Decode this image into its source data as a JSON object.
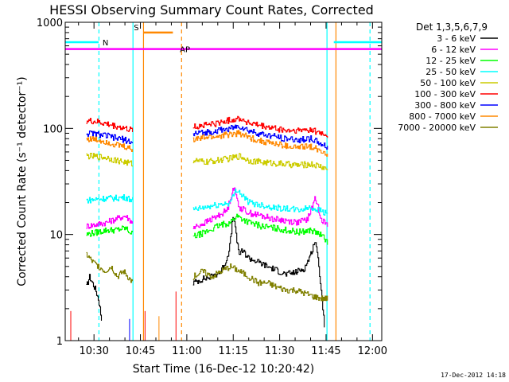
{
  "chart_data": {
    "type": "line",
    "title": "HESSI Observing Summary Count Rates, Corrected",
    "xlabel": "Start Time (16-Dec-12 10:20:42)",
    "ylabel": "Corrected Count Rate (s⁻¹ detector⁻¹)",
    "xscale": "linear",
    "yscale": "log",
    "xlim": [
      620.7,
      723
    ],
    "ylim": [
      1,
      1000
    ],
    "x_ticks": [
      {
        "value": 630,
        "label": "10:30"
      },
      {
        "value": 645,
        "label": "10:45"
      },
      {
        "value": 660,
        "label": "11:00"
      },
      {
        "value": 675,
        "label": "11:15"
      },
      {
        "value": 690,
        "label": "11:30"
      },
      {
        "value": 705,
        "label": "11:45"
      },
      {
        "value": 720,
        "label": "12:00"
      }
    ],
    "y_ticks": [
      {
        "value": 1,
        "label": "1"
      },
      {
        "value": 10,
        "label": "10"
      },
      {
        "value": 100,
        "label": "100"
      },
      {
        "value": 1000,
        "label": "1000"
      }
    ],
    "legend": {
      "position": "right",
      "title": "Det 1,3,5,6,7,9"
    },
    "series": [
      {
        "name": "3 - 6 keV",
        "color": "#000000",
        "segments": [
          {
            "x": [
              627.5,
              628.5,
              629.5,
              630.5,
              631.5,
              632.5
            ],
            "y": [
              3.2,
              4.0,
              3.5,
              3.0,
              2.4,
              1.5
            ]
          },
          {
            "x": [
              662.0,
              665.0,
              668.0,
              671.0,
              673.0,
              674.0,
              675.0,
              676.0,
              677.0,
              678.0,
              680.0,
              683.0,
              686.0,
              689.0,
              692.0,
              695.0,
              698.0,
              700.0,
              701.5,
              703.0,
              704.5
            ],
            "y": [
              3.5,
              3.8,
              4.0,
              4.5,
              6.0,
              8.5,
              16.0,
              9.0,
              6.5,
              7.0,
              6.0,
              5.5,
              5.0,
              4.6,
              4.2,
              4.4,
              4.8,
              6.5,
              9.0,
              4.0,
              1.3
            ]
          }
        ]
      },
      {
        "name": "6 - 12 keV",
        "color": "#ff00ff",
        "segments": [
          {
            "x": [
              627.5,
              631.0,
              634.0,
              637.0,
              640.0,
              642.5
            ],
            "y": [
              12.0,
              12.5,
              13.0,
              14.0,
              15.0,
              13.0
            ]
          },
          {
            "x": [
              662.0,
              666.0,
              670.0,
              673.0,
              675.0,
              677.0,
              680.0,
              684.0,
              688.0,
              692.0,
              696.0,
              699.0,
              701.5,
              703.5,
              705.5
            ],
            "y": [
              11.5,
              13.0,
              15.0,
              17.0,
              28.0,
              18.0,
              16.0,
              15.0,
              14.0,
              13.5,
              13.0,
              14.0,
              22.0,
              14.0,
              12.0
            ]
          }
        ]
      },
      {
        "name": "12 - 25 keV",
        "color": "#00ff00",
        "segments": [
          {
            "x": [
              627.5,
              631.0,
              634.0,
              637.0,
              640.0,
              642.5
            ],
            "y": [
              10.0,
              10.5,
              11.0,
              11.0,
              11.5,
              10.0
            ]
          },
          {
            "x": [
              662.0,
              666.0,
              670.0,
              674.0,
              676.0,
              680.0,
              684.0,
              688.0,
              692.0,
              696.0,
              700.0,
              703.0,
              705.5
            ],
            "y": [
              9.5,
              10.5,
              12.0,
              13.0,
              15.0,
              13.0,
              12.0,
              11.5,
              11.0,
              10.5,
              11.0,
              10.0,
              8.5
            ]
          }
        ]
      },
      {
        "name": "25 - 50 keV",
        "color": "#00ffff",
        "segments": [
          {
            "x": [
              627.5,
              631.0,
              634.0,
              637.0,
              640.0,
              642.5
            ],
            "y": [
              21.0,
              21.5,
              22.0,
              22.0,
              22.5,
              21.0
            ]
          },
          {
            "x": [
              662.0,
              666.0,
              670.0,
              674.0,
              676.0,
              680.0,
              684.0,
              688.0,
              692.0,
              696.0,
              700.0,
              703.0,
              705.5
            ],
            "y": [
              17.0,
              18.0,
              19.0,
              20.0,
              27.0,
              20.0,
              19.0,
              18.0,
              17.5,
              17.0,
              18.0,
              17.0,
              15.5
            ]
          }
        ]
      },
      {
        "name": "50 - 100 keV",
        "color": "#cccc00",
        "segments": [
          {
            "x": [
              627.5,
              631.0,
              634.0,
              637.0,
              640.0,
              642.5
            ],
            "y": [
              55.0,
              54.0,
              53.0,
              50.0,
              48.0,
              46.0
            ]
          },
          {
            "x": [
              662.0,
              666.0,
              670.0,
              674.0,
              677.0,
              680.0,
              684.0,
              688.0,
              692.0,
              696.0,
              700.0,
              703.0,
              705.5
            ],
            "y": [
              50.0,
              48.0,
              50.0,
              52.0,
              55.0,
              50.0,
              48.0,
              47.0,
              46.0,
              45.0,
              46.0,
              44.0,
              41.0
            ]
          }
        ]
      },
      {
        "name": "100 - 300 keV",
        "color": "#ff0000",
        "segments": [
          {
            "x": [
              627.5,
              631.0,
              634.0,
              637.0,
              640.0,
              642.5
            ],
            "y": [
              118.0,
              115.0,
              110.0,
              105.0,
              100.0,
              95.0
            ]
          },
          {
            "x": [
              662.0,
              666.0,
              670.0,
              674.0,
              677.0,
              680.0,
              684.0,
              688.0,
              692.0,
              696.0,
              700.0,
              703.0,
              705.5
            ],
            "y": [
              103.0,
              108.0,
              112.0,
              120.0,
              125.0,
              112.0,
              105.0,
              100.0,
              95.0,
              95.0,
              98.0,
              90.0,
              86.0
            ]
          }
        ]
      },
      {
        "name": "300 - 800 keV",
        "color": "#0000ff",
        "segments": [
          {
            "x": [
              627.5,
              631.0,
              634.0,
              637.0,
              640.0,
              642.5
            ],
            "y": [
              90.0,
              88.0,
              85.0,
              81.0,
              78.0,
              73.0
            ]
          },
          {
            "x": [
              662.0,
              666.0,
              670.0,
              674.0,
              677.0,
              680.0,
              684.0,
              688.0,
              692.0,
              696.0,
              700.0,
              703.0,
              705.5
            ],
            "y": [
              88.0,
              92.0,
              95.0,
              100.0,
              105.0,
              95.0,
              88.0,
              84.0,
              80.0,
              78.0,
              80.0,
              72.0,
              66.0
            ]
          }
        ]
      },
      {
        "name": "800 - 7000 keV",
        "color": "#ff8800",
        "segments": [
          {
            "x": [
              627.5,
              631.0,
              634.0,
              637.0,
              640.0,
              642.5
            ],
            "y": [
              80.0,
              78.0,
              75.0,
              70.0,
              67.0,
              63.0
            ]
          },
          {
            "x": [
              662.0,
              666.0,
              670.0,
              674.0,
              677.0,
              680.0,
              684.0,
              688.0,
              692.0,
              696.0,
              700.0,
              703.0,
              705.5
            ],
            "y": [
              78.0,
              82.0,
              84.0,
              88.0,
              90.0,
              82.0,
              76.0,
              72.0,
              68.0,
              66.0,
              68.0,
              62.0,
              58.0
            ]
          }
        ]
      },
      {
        "name": "7000 - 20000 keV",
        "color": "#808000",
        "segments": [
          {
            "x": [
              627.5,
              629.5,
              631.5,
              633.5,
              635.5,
              637.5,
              639.5,
              641.5,
              642.5
            ],
            "y": [
              6.5,
              5.5,
              5.0,
              4.5,
              5.0,
              4.0,
              4.5,
              3.8,
              3.5
            ]
          },
          {
            "x": [
              662.0,
              665.0,
              668.0,
              671.0,
              674.0,
              677.0,
              680.0,
              683.0,
              686.0,
              689.0,
              692.0,
              695.0,
              698.0,
              701.0,
              703.5,
              705.5
            ],
            "y": [
              4.0,
              4.5,
              4.0,
              4.5,
              5.0,
              4.5,
              4.0,
              3.5,
              3.5,
              3.2,
              3.0,
              3.0,
              2.8,
              2.6,
              2.5,
              2.5
            ]
          }
        ]
      }
    ],
    "annotations": {
      "top_lines": [
        {
          "label": "N",
          "color": "#00ffff",
          "x_start": 620.7,
          "x_end": 631.5,
          "y": 650,
          "label_x": 633.7
        },
        {
          "label": "S",
          "color": "#ff8800",
          "x_start": 646.0,
          "x_end": 655.5,
          "y": 800,
          "label_x": 643.7
        },
        {
          "label": "AP",
          "color": "#ff00ff",
          "x_start": 620.7,
          "x_end": 723,
          "y": 560,
          "label_x": 659.4
        },
        {
          "label": "",
          "color": "#00ffff",
          "x_start": 707.5,
          "x_end": 723,
          "y": 650
        }
      ],
      "vertical_lines": [
        {
          "x": 631.6,
          "color": "#00ffff",
          "dashed": true
        },
        {
          "x": 642.6,
          "color": "#00ffff",
          "dashed": false
        },
        {
          "x": 646.0,
          "color": "#ff8800",
          "dashed": false
        },
        {
          "x": 658.3,
          "color": "#ff8800",
          "dashed": true
        },
        {
          "x": 705.3,
          "color": "#00ffff",
          "dashed": false
        },
        {
          "x": 708.2,
          "color": "#ff8800",
          "dashed": false
        },
        {
          "x": 719.2,
          "color": "#00ffff",
          "dashed": true
        }
      ],
      "spikes": [
        {
          "x": 622.5,
          "y": 1.9,
          "color": "#ff0000"
        },
        {
          "x": 641.5,
          "y": 1.6,
          "color": "#0000ff"
        },
        {
          "x": 646.5,
          "y": 1.9,
          "color": "#ff0000"
        },
        {
          "x": 651.0,
          "y": 1.7,
          "color": "#ff8800"
        },
        {
          "x": 656.5,
          "y": 2.9,
          "color": "#ff0000"
        }
      ]
    },
    "footer_timestamp": "17-Dec-2012 14:18"
  }
}
